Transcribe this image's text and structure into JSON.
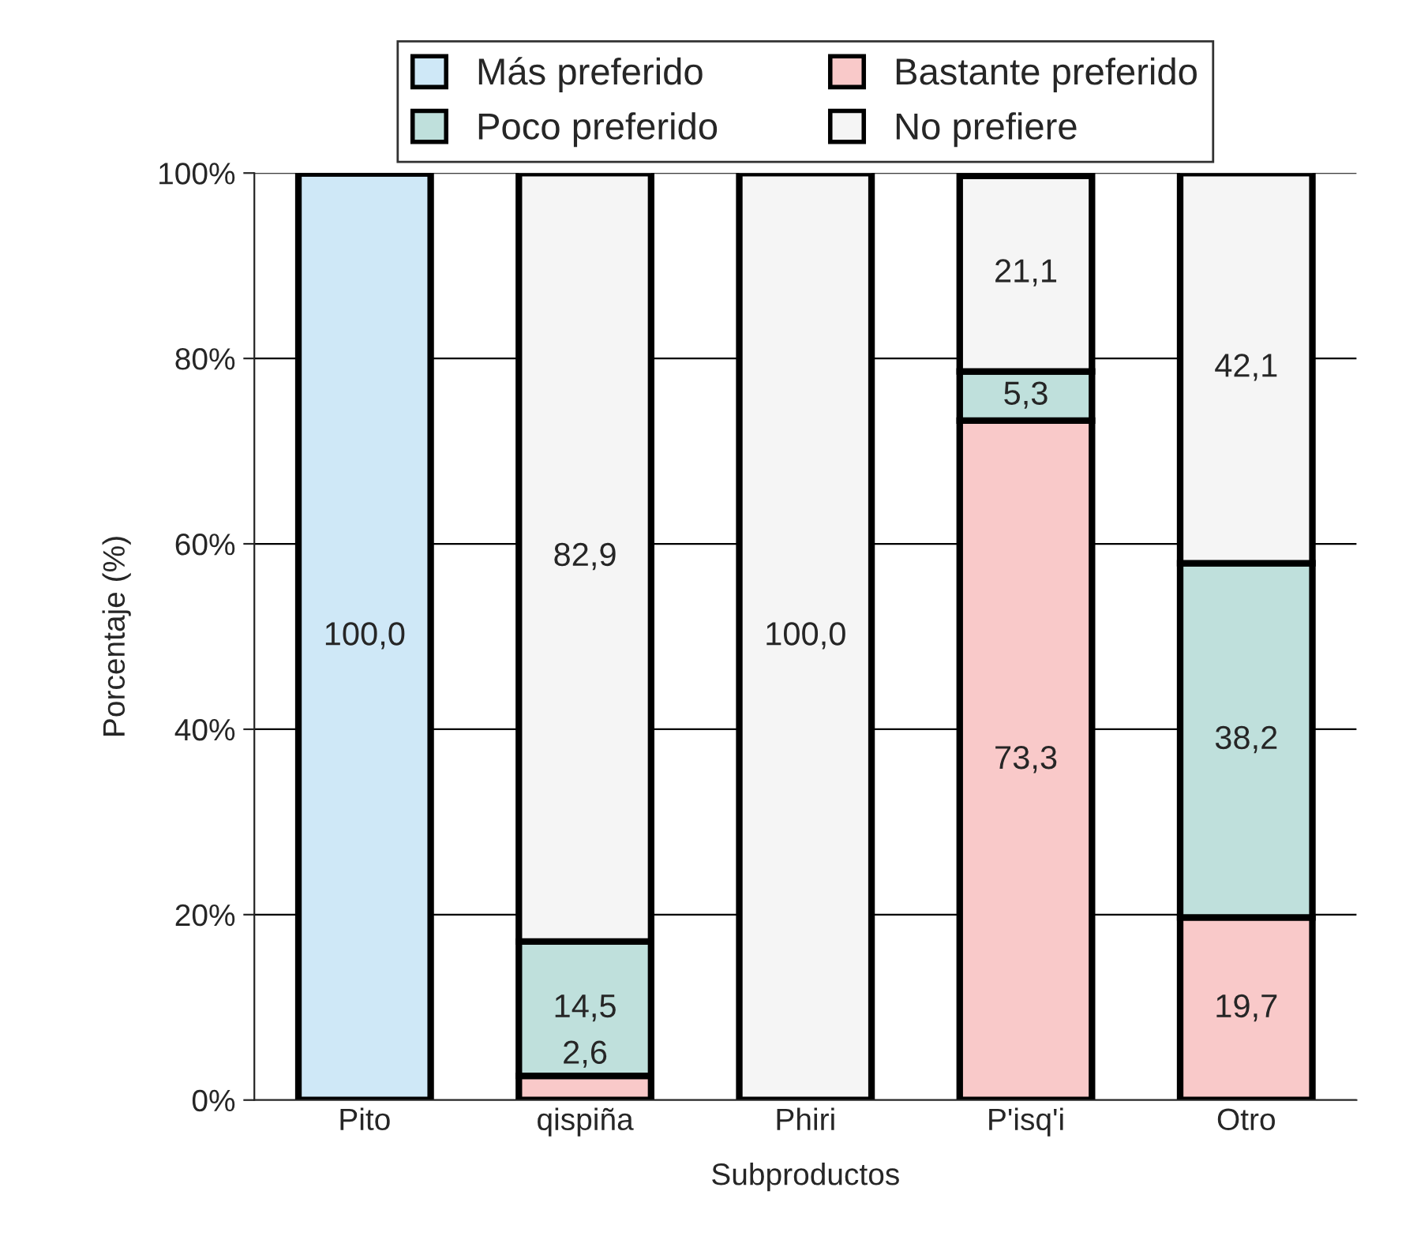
{
  "chart_data": {
    "type": "bar",
    "stacked": true,
    "xlabel": "Subproductos",
    "ylabel": "Porcentaje (%)",
    "categories": [
      "Pito",
      "qispiña",
      "Phiri",
      "P'isq'i",
      "Otro"
    ],
    "series": [
      {
        "name": "Más preferido",
        "color": "#cfe8f7",
        "values": [
          100,
          null,
          null,
          null,
          null
        ],
        "value_labels": [
          "100,0",
          null,
          null,
          null,
          null
        ]
      },
      {
        "name": "Bastante preferido",
        "color": "#f9c9c9",
        "values": [
          null,
          2.6,
          null,
          73.3,
          19.7
        ],
        "value_labels": [
          null,
          "2,6",
          null,
          "73,3",
          "19,7"
        ]
      },
      {
        "name": "Poco preferido",
        "color": "#bfe0dc",
        "values": [
          null,
          14.5,
          null,
          5.3,
          38.2
        ],
        "value_labels": [
          null,
          "14,5",
          null,
          "5,3",
          "38,2"
        ]
      },
      {
        "name": "No prefiere",
        "color": "#f5f5f5",
        "values": [
          null,
          82.9,
          100,
          21.1,
          42.1
        ],
        "value_labels": [
          null,
          "82,9",
          "100,0",
          "21,1",
          "42,1"
        ]
      }
    ],
    "ylim": [
      0,
      100
    ],
    "yticks": [
      {
        "value": 0,
        "label": "0%"
      },
      {
        "value": 20,
        "label": "20%"
      },
      {
        "value": 40,
        "label": "40%"
      },
      {
        "value": 60,
        "label": "60%"
      },
      {
        "value": 80,
        "label": "80%"
      },
      {
        "value": 100,
        "label": "100%"
      }
    ],
    "grid": "y",
    "legend": "top"
  }
}
